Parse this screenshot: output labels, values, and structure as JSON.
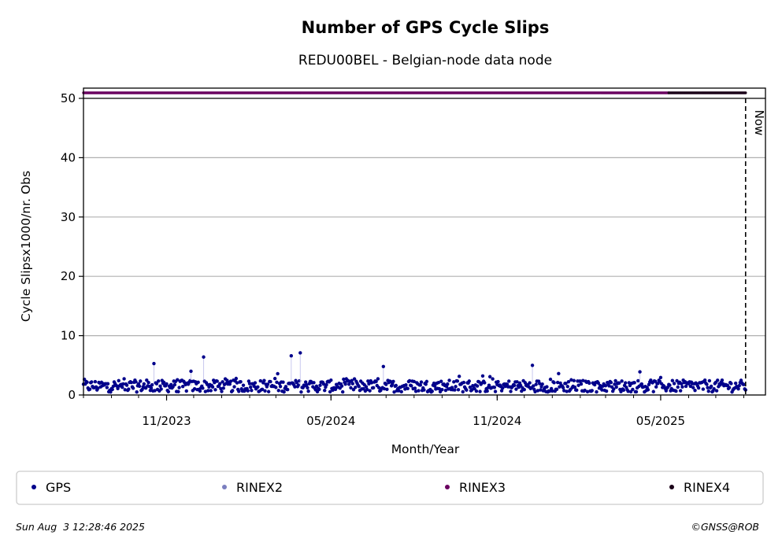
{
  "chart_data": {
    "type": "scatter",
    "title": "Number of GPS Cycle Slips",
    "subtitle": "REDU00BEL - Belgian-node data node",
    "xlabel": "Month/Year",
    "ylabel": "Cycle Slipsx1000/nr. Obs",
    "ylim": [
      0,
      52
    ],
    "yticks": [
      0,
      10,
      20,
      30,
      40,
      50
    ],
    "xlim": [
      "2023-08-01",
      "2025-08-25"
    ],
    "xticks": [
      {
        "date": "2023-11-01",
        "label": "11/2023"
      },
      {
        "date": "2024-05-01",
        "label": "05/2024"
      },
      {
        "date": "2024-11-01",
        "label": "11/2024"
      },
      {
        "date": "2025-05-01",
        "label": "05/2025"
      }
    ],
    "grid": "horizontal",
    "now_marker": {
      "date": "2025-08-03",
      "label": "Now"
    },
    "series": [
      {
        "name": "GPS",
        "color": "#00008b",
        "x_start": "2023-08-01",
        "x_end": "2025-08-03",
        "typical_range": [
          0.5,
          2.5
        ],
        "peaks": [
          {
            "date": "2023-10-18",
            "value": 5.3
          },
          {
            "date": "2023-11-28",
            "value": 4.0
          },
          {
            "date": "2023-12-12",
            "value": 6.4
          },
          {
            "date": "2024-03-18",
            "value": 6.6
          },
          {
            "date": "2024-03-28",
            "value": 7.1
          },
          {
            "date": "2024-06-28",
            "value": 4.8
          },
          {
            "date": "2024-12-10",
            "value": 5.0
          },
          {
            "date": "2025-04-08",
            "value": 3.9
          }
        ]
      },
      {
        "name": "RINEX2",
        "color": "#7b7fbf"
      },
      {
        "name": "RINEX3",
        "color": "#6a0060",
        "value": 51,
        "x_start": "2023-08-01",
        "x_end": "2025-05-10"
      },
      {
        "name": "RINEX4",
        "color": "#1a0018",
        "value": 51,
        "x_start": "2025-05-10",
        "x_end": "2025-08-03"
      }
    ],
    "legend_position": "bottom"
  },
  "footer": {
    "timestamp": "Sun Aug  3 12:28:46 2025",
    "copyright": "©GNSS@ROB"
  }
}
